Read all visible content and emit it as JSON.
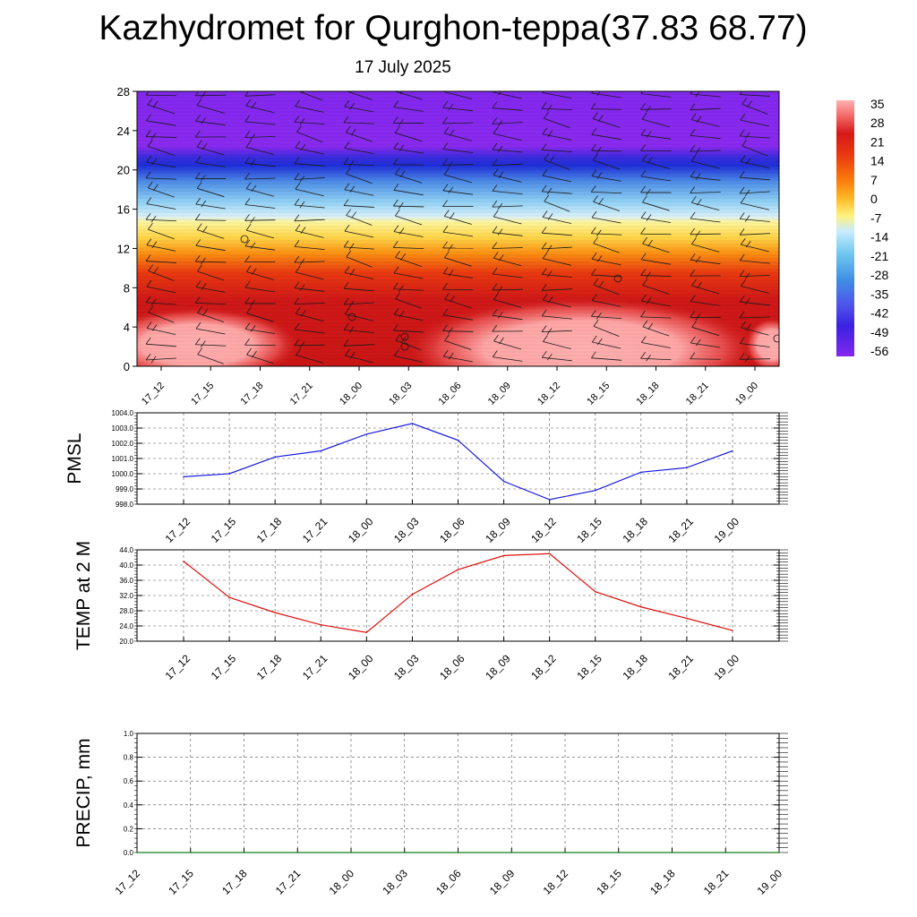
{
  "header": {
    "title": "Kazhydromet for Qurghon-teppa(37.83 68.77)",
    "date": "17 July 2025"
  },
  "chart_data": [
    {
      "type": "heatmap",
      "name": "temperature-wind-profile",
      "ylim": [
        0,
        28
      ],
      "y_ticks": [
        "0",
        "4",
        "8",
        "12",
        "16",
        "20",
        "24",
        "28"
      ],
      "x_tick_labels": [
        "17_12",
        "17_15",
        "17_18",
        "17_21",
        "18_00",
        "18_03",
        "18_06",
        "18_09",
        "18_12",
        "18_15",
        "18_18",
        "18_21",
        "19_00"
      ],
      "colorbar_labels": [
        "35",
        "28",
        "21",
        "14",
        "7",
        "0",
        "-7",
        "-14",
        "-21",
        "-28",
        "-35",
        "-42",
        "-49",
        "-56"
      ],
      "colorbar_colors": [
        "#ffb0b0",
        "#f56a6a",
        "#d61818",
        "#ea3d10",
        "#fb7a0c",
        "#ffb624",
        "#fff27a",
        "#c9ecff",
        "#6fc6ee",
        "#3f8fe3",
        "#4f54ec",
        "#3a22e0",
        "#6226e6",
        "#8328f0"
      ]
    },
    {
      "type": "line",
      "name": "PMSL",
      "ylabel": "PMSL",
      "ylim": [
        998.0,
        1004.0
      ],
      "y_ticks": [
        "998.0",
        "999.0",
        "1000.0",
        "1001.0",
        "1002.0",
        "1003.0",
        "1004.0"
      ],
      "categories": [
        "17_12",
        "17_15",
        "17_18",
        "17_21",
        "18_00",
        "18_03",
        "18_06",
        "18_09",
        "18_12",
        "18_15",
        "18_18",
        "18_21",
        "19_00"
      ],
      "values": [
        999.8,
        1000.0,
        1001.1,
        1001.5,
        1002.6,
        1003.3,
        1002.2,
        999.5,
        998.3,
        998.9,
        1000.1,
        1000.4,
        1001.5
      ],
      "color": "#1a1ae0"
    },
    {
      "type": "line",
      "name": "TEMP",
      "ylabel": "TEMP at 2 M",
      "ylim": [
        20.0,
        44.0
      ],
      "y_ticks": [
        "20.0",
        "24.0",
        "28.0",
        "32.0",
        "36.0",
        "40.0",
        "44.0"
      ],
      "categories": [
        "17_12",
        "17_15",
        "17_18",
        "17_21",
        "18_00",
        "18_03",
        "18_06",
        "18_09",
        "18_12",
        "18_15",
        "18_18",
        "18_21",
        "19_00"
      ],
      "values": [
        41.0,
        31.5,
        27.5,
        24.3,
        22.3,
        32.3,
        38.8,
        42.5,
        43.0,
        33.0,
        29.0,
        26.0,
        22.8
      ],
      "color": "#e01010"
    },
    {
      "type": "line",
      "name": "PRECIP",
      "ylabel": "PRECIP, mm",
      "ylim": [
        0.0,
        1.0
      ],
      "y_ticks": [
        "0.0",
        "0.2",
        "0.4",
        "0.6",
        "0.8",
        "1.0"
      ],
      "categories": [
        "17_12",
        "17_15",
        "17_18",
        "17_21",
        "18_00",
        "18_03",
        "18_06",
        "18_09",
        "18_12",
        "18_15",
        "18_18",
        "18_21",
        "19_00"
      ],
      "values": [
        0,
        0,
        0,
        0,
        0,
        0,
        0,
        0,
        0,
        0,
        0,
        0,
        0
      ],
      "color": "#1a7a1a"
    }
  ]
}
